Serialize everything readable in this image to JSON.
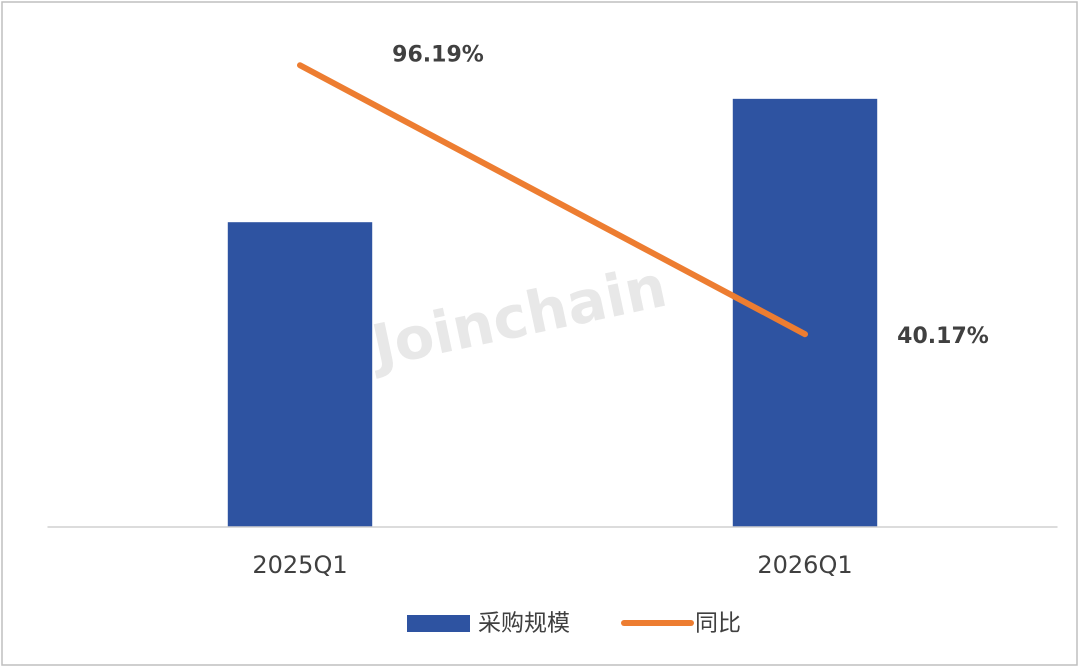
{
  "chart_data": {
    "type": "bar-line",
    "categories": [
      "2025Q1",
      "2026Q1"
    ],
    "series": [
      {
        "name": "采购规模",
        "type": "bar",
        "color": "#2e53a1",
        "values": [
          63.5,
          89.2
        ]
      },
      {
        "name": "同比",
        "type": "line",
        "axis": "y2",
        "color": "#ed7d31",
        "values": [
          96.19,
          40.17
        ],
        "value_labels": [
          "96.19%",
          "40.17%"
        ]
      }
    ],
    "ylim": [
      0,
      100
    ],
    "y2lim": [
      0,
      100
    ],
    "legend": "bottom",
    "watermark": "Joinchain"
  }
}
